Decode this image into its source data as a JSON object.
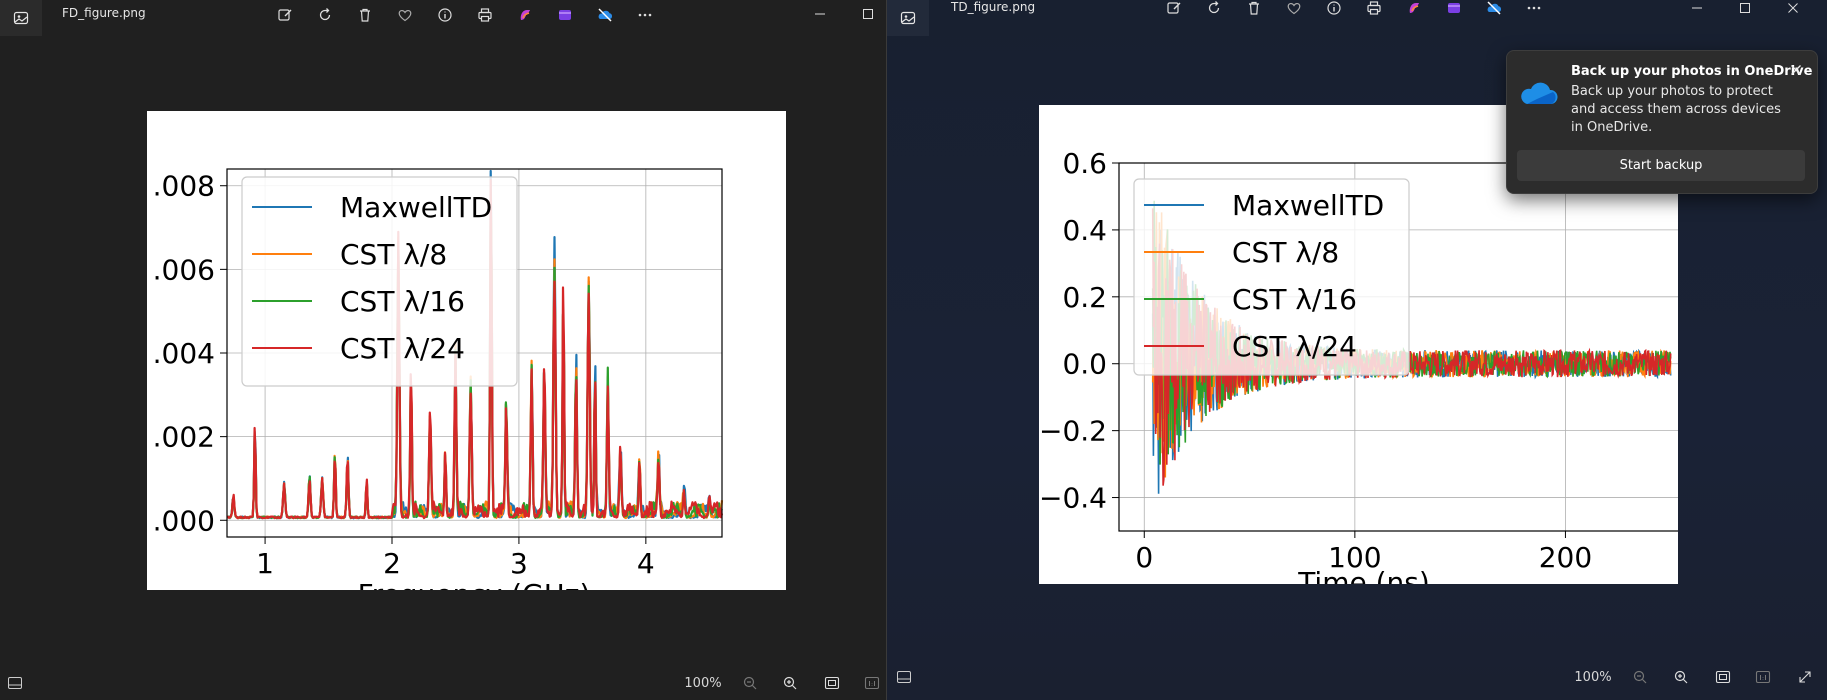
{
  "left_window": {
    "title": "FD_figure.png",
    "toolbar_icons": [
      "edit-icon",
      "rotate-icon",
      "delete-icon",
      "favorite-icon",
      "info-icon",
      "print-icon",
      "copilot-icon",
      "clipchamp-icon",
      "onedrive-off-icon",
      "more-icon"
    ],
    "zoom": "100%"
  },
  "right_window": {
    "title": "TD_figure.png",
    "toolbar_icons": [
      "edit-icon",
      "rotate-icon",
      "delete-icon",
      "favorite-icon",
      "info-icon",
      "print-icon",
      "copilot-icon",
      "clipchamp-icon",
      "onedrive-off-icon",
      "more-icon"
    ],
    "zoom": "100%"
  },
  "notification": {
    "title": "Back up your photos in OneDrive",
    "body": "Back up your photos to protect and access them across devices in OneDrive.",
    "button": "Start backup"
  },
  "chart_data": [
    {
      "type": "line",
      "xlabel": "Frequency (GHz)",
      "ylabel": "",
      "xlim": [
        0.7,
        4.6
      ],
      "ylim": [
        -0.0004,
        0.0084
      ],
      "xticks": [
        1,
        2,
        3,
        4
      ],
      "yticks": [
        0.0,
        0.002,
        0.004,
        0.006,
        0.008
      ],
      "ytick_labels": [
        ".000",
        ".002",
        ".004",
        ".006",
        ".008"
      ],
      "grid": true,
      "legend_position": "upper-left",
      "series": [
        {
          "name": "MaxwellTD",
          "color": "#1f77b4"
        },
        {
          "name": "CST λ/8",
          "color": "#ff7f0e"
        },
        {
          "name": "CST λ/16",
          "color": "#2ca02c"
        },
        {
          "name": "CST λ/24",
          "color": "#d62728"
        }
      ],
      "peaks": [
        [
          0.75,
          0.0005
        ],
        [
          0.92,
          0.0021
        ],
        [
          1.15,
          0.0008
        ],
        [
          1.35,
          0.001
        ],
        [
          1.45,
          0.0009
        ],
        [
          1.55,
          0.0016
        ],
        [
          1.65,
          0.0014
        ],
        [
          1.8,
          0.0009
        ],
        [
          2.05,
          0.0063
        ],
        [
          2.15,
          0.0035
        ],
        [
          2.3,
          0.0025
        ],
        [
          2.42,
          0.0015
        ],
        [
          2.5,
          0.004
        ],
        [
          2.62,
          0.0032
        ],
        [
          2.78,
          0.0082
        ],
        [
          2.9,
          0.0025
        ],
        [
          3.1,
          0.0037
        ],
        [
          3.2,
          0.0033
        ],
        [
          3.28,
          0.006
        ],
        [
          3.35,
          0.0052
        ],
        [
          3.45,
          0.0036
        ],
        [
          3.55,
          0.0055
        ],
        [
          3.6,
          0.0035
        ],
        [
          3.7,
          0.0034
        ],
        [
          3.8,
          0.0016
        ],
        [
          3.95,
          0.0014
        ],
        [
          4.1,
          0.0013
        ],
        [
          4.3,
          0.0006
        ],
        [
          4.5,
          0.0005
        ]
      ]
    },
    {
      "type": "line",
      "xlabel": "Time (ns)",
      "ylabel": "",
      "xlim": [
        -12,
        262
      ],
      "ylim": [
        -0.5,
        0.6
      ],
      "xticks": [
        0,
        100,
        200
      ],
      "yticks": [
        -0.4,
        -0.2,
        0.0,
        0.2,
        0.4,
        0.6
      ],
      "ytick_labels": [
        "−0.4",
        "−0.2",
        "0.0",
        "0.2",
        "0.4",
        "0.6"
      ],
      "grid": true,
      "legend_position": "upper-left",
      "series": [
        {
          "name": "MaxwellTD",
          "color": "#1f77b4"
        },
        {
          "name": "CST λ/8",
          "color": "#ff7f0e"
        },
        {
          "name": "CST λ/16",
          "color": "#2ca02c"
        },
        {
          "name": "CST λ/24",
          "color": "#d62728"
        }
      ],
      "envelope": {
        "start_ns": 4,
        "end_ns": 250,
        "initial_max": 0.55,
        "initial_min": -0.45,
        "final_amplitude": 0.04
      }
    }
  ]
}
